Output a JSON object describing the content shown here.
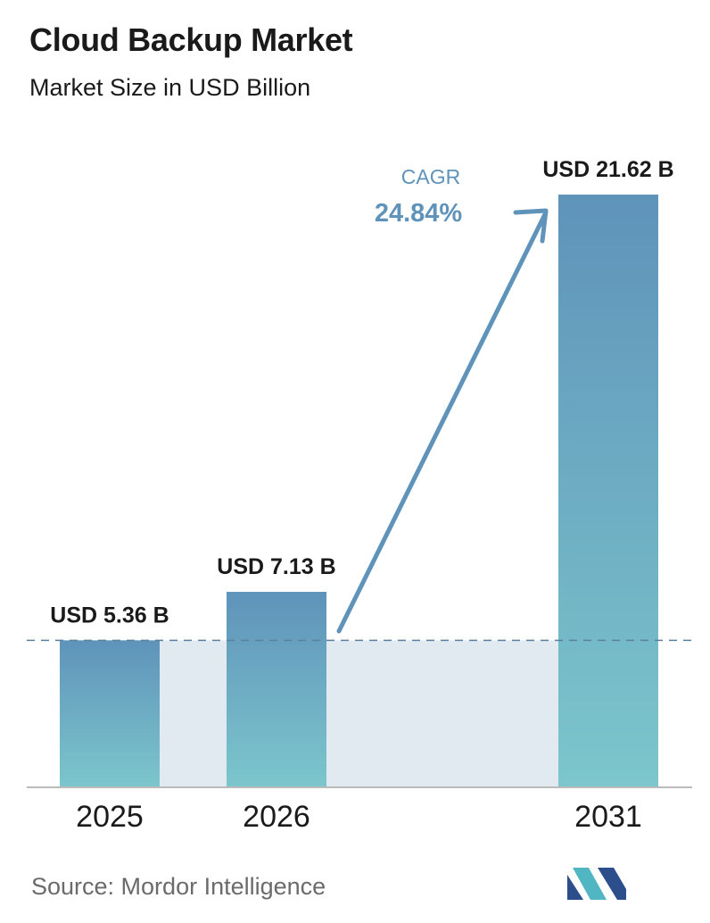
{
  "header": {
    "title": "Cloud Backup Market",
    "subtitle": "Market Size in USD Billion"
  },
  "cagr": {
    "label": "CAGR",
    "value": "24.84%"
  },
  "footer": {
    "source": "Source:  Mordor Intelligence"
  },
  "colors": {
    "bar_top": "#5f93ba",
    "bar_bottom": "#7cc6cc",
    "band": "#e1e9f1",
    "dashed_line": "#5b7f9c",
    "arrow": "#5f93ba",
    "cagr_text": "#5f93ba",
    "axis": "#bbbbbb",
    "logo_dark": "#2c4f8c",
    "logo_light": "#4fb6c2"
  },
  "chart_data": {
    "type": "bar",
    "categories": [
      "2025",
      "2026",
      "2031"
    ],
    "values": [
      5.36,
      7.13,
      21.62
    ],
    "data_labels": [
      "USD 5.36 B",
      "USD 7.13 B",
      "USD 21.62 B"
    ],
    "ylim": [
      0,
      21.62
    ],
    "xlabel": "",
    "ylabel": "",
    "grid": false,
    "reference_line": 5.36
  }
}
